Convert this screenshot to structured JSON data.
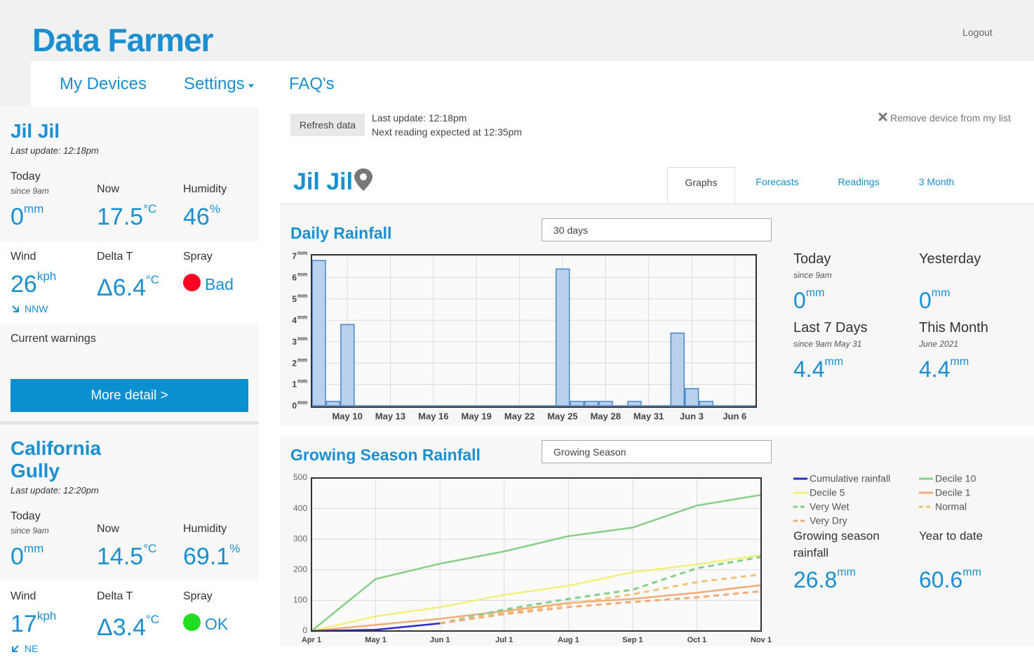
{
  "header": {
    "title": "Data Farmer",
    "logout": "Logout"
  },
  "nav": {
    "items": [
      "My Devices",
      "Settings",
      "FAQ's"
    ]
  },
  "devices": [
    {
      "name": "Jil Jil",
      "last_update": "Last update: 12:18pm",
      "today_label": "Today",
      "today_since": "since 9am",
      "today_value": 0,
      "today_unit": "mm",
      "now_label": "Now",
      "now_value": 17.5,
      "now_unit": "°C",
      "humidity_label": "Humidity",
      "humidity_value": 46,
      "humidity_unit": "%",
      "wind_label": "Wind",
      "wind_value": 26,
      "wind_unit": "kph",
      "wind_direction": "NNW",
      "delta_label": "Delta T",
      "delta_symbol": "Δ",
      "delta_value": 6.4,
      "delta_unit": "°C",
      "spray_label": "Spray",
      "spray_status": "Bad",
      "spray_color": "#ff0022",
      "warnings_label": "Current warnings",
      "detail_button": "More detail >"
    },
    {
      "name": "California Gully",
      "last_update": "Last update: 12:20pm",
      "today_label": "Today",
      "today_since": "since 9am",
      "today_value": 0,
      "today_unit": "mm",
      "now_label": "Now",
      "now_value": 14.5,
      "now_unit": "°C",
      "humidity_label": "Humidity",
      "humidity_value": 69.1,
      "humidity_unit": "%",
      "wind_label": "Wind",
      "wind_value": 17,
      "wind_unit": "kph",
      "wind_direction": "NE",
      "delta_label": "Delta T",
      "delta_symbol": "Δ",
      "delta_value": 3.4,
      "delta_unit": "°C",
      "spray_label": "Spray",
      "spray_status": "OK",
      "spray_color": "#22dd22"
    }
  ],
  "main": {
    "refresh_button": "Refresh data",
    "last_update": "Last update: 12:18pm",
    "next_reading": "Next reading expected at 12:35pm",
    "remove_device": "Remove device from my list",
    "device_name": "Jil Jil",
    "tabs": [
      "Graphs",
      "Forecasts",
      "Readings",
      "3 Month"
    ],
    "daily_panel": {
      "select": "30 days",
      "stats": [
        {
          "label": "Today",
          "note": "since 9am",
          "value": 0,
          "unit": "mm"
        },
        {
          "label": "Yesterday",
          "value": 0,
          "unit": "mm"
        },
        {
          "label": "Last 7 Days",
          "note": "since 9am May 31",
          "value": 4.4,
          "unit": "mm"
        },
        {
          "label": "This Month",
          "note": "June 2021",
          "value": 4.4,
          "unit": "mm"
        }
      ]
    },
    "season_panel": {
      "select": "Growing Season",
      "stats": [
        {
          "label": "Growing season rainfall",
          "value": 26.8,
          "unit": "mm"
        },
        {
          "label": "Year to date",
          "value": 60.6,
          "unit": "mm"
        }
      ]
    }
  },
  "chart_data": [
    {
      "type": "bar",
      "title": "Daily Rainfall",
      "categories": [
        null,
        null,
        "May 10",
        null,
        null,
        "May 13",
        null,
        null,
        "May 16",
        null,
        null,
        "May 19",
        null,
        null,
        "May 22",
        null,
        null,
        "May 25",
        null,
        null,
        "May 28",
        null,
        null,
        "May 31",
        null,
        null,
        "Jun 3",
        null,
        null,
        "Jun 6",
        null
      ],
      "values": [
        6.8,
        0.2,
        3.8,
        0,
        0,
        0,
        0,
        0,
        0,
        0,
        0,
        0,
        0,
        0,
        0,
        0,
        0,
        6.4,
        0.2,
        0.2,
        0.2,
        0,
        0.2,
        0,
        0,
        3.4,
        0.8,
        0.2,
        0,
        0,
        0
      ],
      "color": "#b9d1ec",
      "edge_color": "#4a86c8",
      "ylim": [
        0,
        7
      ],
      "yticks": [
        0,
        1,
        2,
        3,
        4,
        5,
        6,
        7
      ],
      "y_unit": "mm",
      "grid": true
    },
    {
      "type": "line",
      "title": "Growing Season Rainfall",
      "categories": [
        "Apr 1",
        "May 1",
        "Jun 1",
        "Jul 1",
        "Aug 1",
        "Sep 1",
        "Oct 1",
        "Nov 1"
      ],
      "series": [
        {
          "name": "Cumulative rainfall",
          "color": "#2b2bd6",
          "dashed": false,
          "values": [
            0,
            4,
            25,
            null,
            null,
            null,
            null,
            null
          ]
        },
        {
          "name": "Decile 10",
          "color": "#86cf86",
          "dashed": false,
          "values": [
            0,
            170,
            220,
            260,
            310,
            338,
            410,
            445
          ]
        },
        {
          "name": "Decile 5",
          "color": "#f0f07a",
          "dashed": false,
          "values": [
            0,
            48,
            78,
            118,
            148,
            192,
            218,
            248
          ]
        },
        {
          "name": "Decile 1",
          "color": "#f2ac78",
          "dashed": false,
          "values": [
            0,
            20,
            40,
            65,
            92,
            105,
            125,
            150
          ]
        },
        {
          "name": "Very Wet",
          "color": "#86cf86",
          "dashed": true,
          "values": [
            null,
            null,
            25,
            70,
            105,
            135,
            205,
            242
          ]
        },
        {
          "name": "Normal",
          "color": "#f4c27a",
          "dashed": true,
          "values": [
            null,
            null,
            25,
            60,
            88,
            120,
            160,
            185
          ]
        },
        {
          "name": "Very Dry",
          "color": "#f2ac78",
          "dashed": true,
          "values": [
            null,
            null,
            25,
            55,
            78,
            95,
            110,
            130
          ]
        }
      ],
      "ylim": [
        0,
        500
      ],
      "yticks": [
        0,
        100,
        200,
        300,
        400,
        500
      ],
      "grid": true
    }
  ]
}
